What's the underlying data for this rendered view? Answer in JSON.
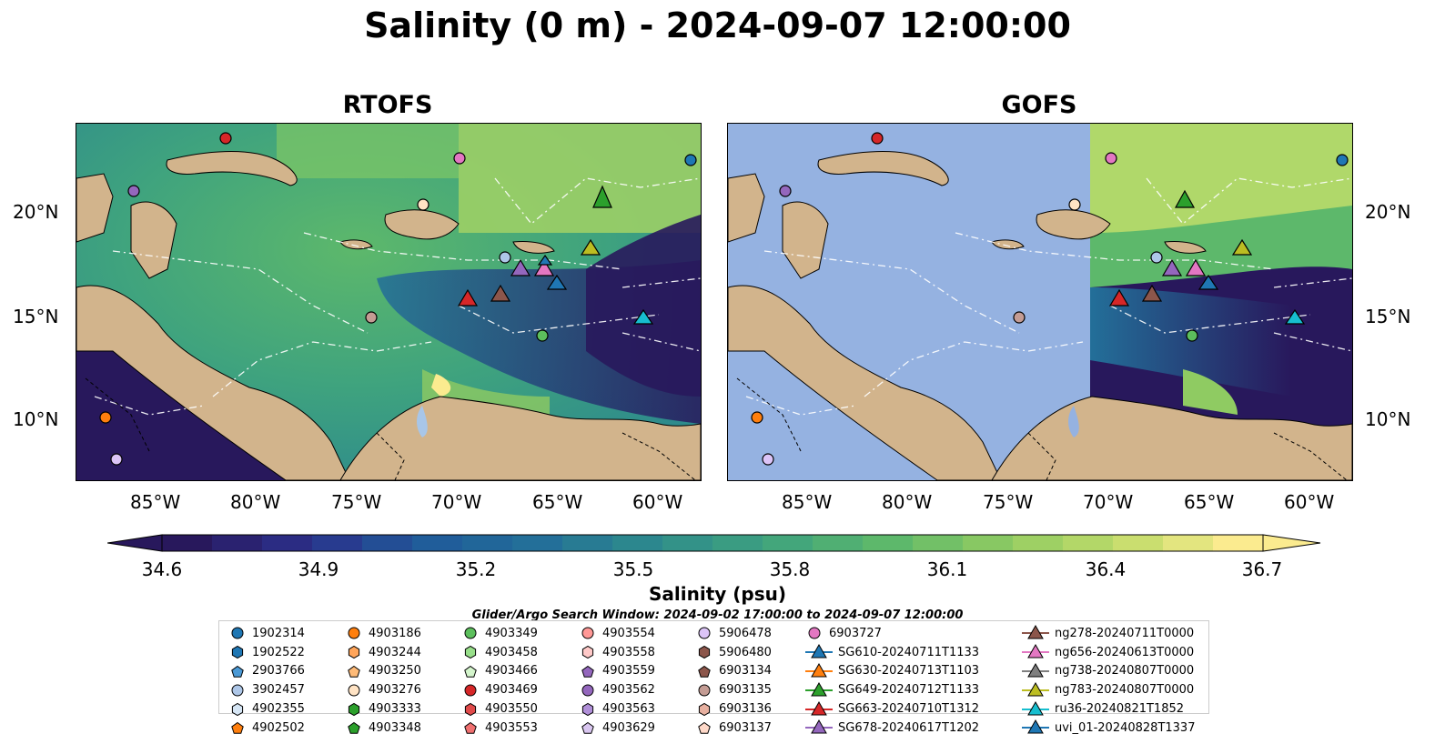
{
  "title": "Salinity (0 m) - 2024-09-07 12:00:00",
  "panels": [
    {
      "title": "RTOFS"
    },
    {
      "title": "GOFS"
    }
  ],
  "axes": {
    "lon_ticks": [
      "85°W",
      "80°W",
      "75°W",
      "70°W",
      "65°W",
      "60°W"
    ],
    "lat_ticks": [
      "20°N",
      "15°N",
      "10°N"
    ]
  },
  "colorbar": {
    "label": "Salinity (psu)",
    "ticks": [
      "34.6",
      "34.9",
      "35.2",
      "35.5",
      "35.8",
      "36.1",
      "36.4",
      "36.7"
    ],
    "colormap": [
      "#28185c",
      "#2c2f8a",
      "#1f5a9a",
      "#236f99",
      "#2e8b8c",
      "#3fa37e",
      "#5db86b",
      "#8fcb62",
      "#c2dc6a",
      "#fbeb8f"
    ]
  },
  "search_window": "Glider/Argo Search Window: 2024-09-02 17:00:00 to 2024-09-07 12:00:00",
  "legend": {
    "columns": [
      [
        {
          "label": "1902314",
          "marker": "circle",
          "color": "#1f77b4"
        },
        {
          "label": "1902522",
          "marker": "hexagon",
          "color": "#1f77b4"
        },
        {
          "label": "2903766",
          "marker": "pentagon",
          "color": "#4b9ad6"
        },
        {
          "label": "3902457",
          "marker": "circle",
          "color": "#aec7e8"
        },
        {
          "label": "4902355",
          "marker": "hexagon",
          "color": "#d6e6f5"
        },
        {
          "label": "4902502",
          "marker": "pentagon",
          "color": "#ff7f0e"
        }
      ],
      [
        {
          "label": "4903186",
          "marker": "circle",
          "color": "#ff7f0e"
        },
        {
          "label": "4903244",
          "marker": "hexagon",
          "color": "#ffa55a"
        },
        {
          "label": "4903250",
          "marker": "pentagon",
          "color": "#ffbb78"
        },
        {
          "label": "4903276",
          "marker": "circle",
          "color": "#ffe3c4"
        },
        {
          "label": "4903333",
          "marker": "hexagon",
          "color": "#2ca02c"
        },
        {
          "label": "4903348",
          "marker": "pentagon",
          "color": "#2ca02c"
        }
      ],
      [
        {
          "label": "4903349",
          "marker": "circle",
          "color": "#5cbf5c"
        },
        {
          "label": "4903458",
          "marker": "hexagon",
          "color": "#98df8a"
        },
        {
          "label": "4903466",
          "marker": "pentagon",
          "color": "#d4f5cc"
        },
        {
          "label": "4903469",
          "marker": "circle",
          "color": "#d62728"
        },
        {
          "label": "4903550",
          "marker": "hexagon",
          "color": "#e04a4a"
        },
        {
          "label": "4903553",
          "marker": "pentagon",
          "color": "#f07070"
        }
      ],
      [
        {
          "label": "4903554",
          "marker": "circle",
          "color": "#ff9896"
        },
        {
          "label": "4903558",
          "marker": "hexagon",
          "color": "#ffc9c8"
        },
        {
          "label": "4903559",
          "marker": "pentagon",
          "color": "#9467bd"
        },
        {
          "label": "4903562",
          "marker": "circle",
          "color": "#9467bd"
        },
        {
          "label": "4903563",
          "marker": "hexagon",
          "color": "#b08fd8"
        },
        {
          "label": "4903629",
          "marker": "pentagon",
          "color": "#d9c6f0"
        }
      ],
      [
        {
          "label": "5906478",
          "marker": "circle",
          "color": "#dcc4f7"
        },
        {
          "label": "5906480",
          "marker": "hexagon",
          "color": "#8c564b"
        },
        {
          "label": "6903134",
          "marker": "pentagon",
          "color": "#8c564b"
        },
        {
          "label": "6903135",
          "marker": "circle",
          "color": "#c49c94"
        },
        {
          "label": "6903136",
          "marker": "hexagon",
          "color": "#e7b0a0"
        },
        {
          "label": "6903137",
          "marker": "pentagon",
          "color": "#ffd9c9"
        }
      ],
      [
        {
          "label": "6903727",
          "marker": "circle",
          "color": "#e377c2"
        },
        {
          "label": "SG610-20240711T1133",
          "marker": "triangle",
          "color": "#1f77b4"
        },
        {
          "label": "SG630-20240713T1103",
          "marker": "triangle",
          "color": "#ff7f0e"
        },
        {
          "label": "SG649-20240712T1133",
          "marker": "triangle",
          "color": "#2ca02c"
        },
        {
          "label": "SG663-20240710T1312",
          "marker": "triangle",
          "color": "#d62728"
        },
        {
          "label": "SG678-20240617T1202",
          "marker": "triangle",
          "color": "#9467bd"
        }
      ],
      [
        {
          "label": "ng278-20240711T0000",
          "marker": "triangle",
          "color": "#8c564b"
        },
        {
          "label": "ng656-20240613T0000",
          "marker": "triangle",
          "color": "#e377c2"
        },
        {
          "label": "ng738-20240807T0000",
          "marker": "triangle",
          "color": "#7f7f7f"
        },
        {
          "label": "ng783-20240807T0000",
          "marker": "triangle",
          "color": "#bcbd22"
        },
        {
          "label": "ru36-20240821T1852",
          "marker": "triangle",
          "color": "#17becf"
        },
        {
          "label": "uvi_01-20240828T1337",
          "marker": "triangle",
          "color": "#1f77b4"
        }
      ]
    ]
  }
}
